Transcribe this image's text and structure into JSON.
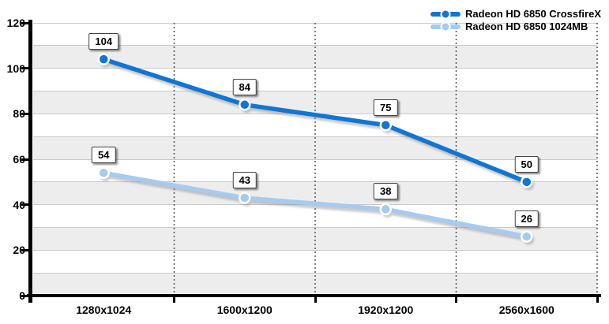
{
  "chart_data": {
    "type": "line",
    "title": "",
    "categories": [
      "1280x1024",
      "1600x1200",
      "1920x1200",
      "2560x1600"
    ],
    "series": [
      {
        "name": "Radeon HD 6850 CrossfireX",
        "values": [
          104,
          84,
          75,
          50
        ],
        "color": "#1175D3",
        "shade": "dark-blue"
      },
      {
        "name": "Radeon HD 6850 1024MB",
        "values": [
          54,
          43,
          38,
          26
        ],
        "color": "#A6CBF0",
        "shade": "light-blue"
      }
    ],
    "xlabel": "",
    "ylabel": "",
    "ylim": [
      0,
      120
    ],
    "yticks": [
      0,
      20,
      40,
      60,
      80,
      100,
      120
    ],
    "band_step": 10,
    "grid": true,
    "grid_style": "horizontal gridlines every 10, alternating gray bands, dotted vertical category separators",
    "legend_position": "top-right",
    "data_labels": true
  },
  "style": {
    "background": "#FFFFFF",
    "band_color": "#EDEDED",
    "gridline_color": "#C9C9C9",
    "axis_color": "#000000",
    "dotted_line_color": "#555555",
    "shadow_color": "#8A8A8A",
    "label_box_border": "#444444",
    "text_color": "#000000"
  }
}
